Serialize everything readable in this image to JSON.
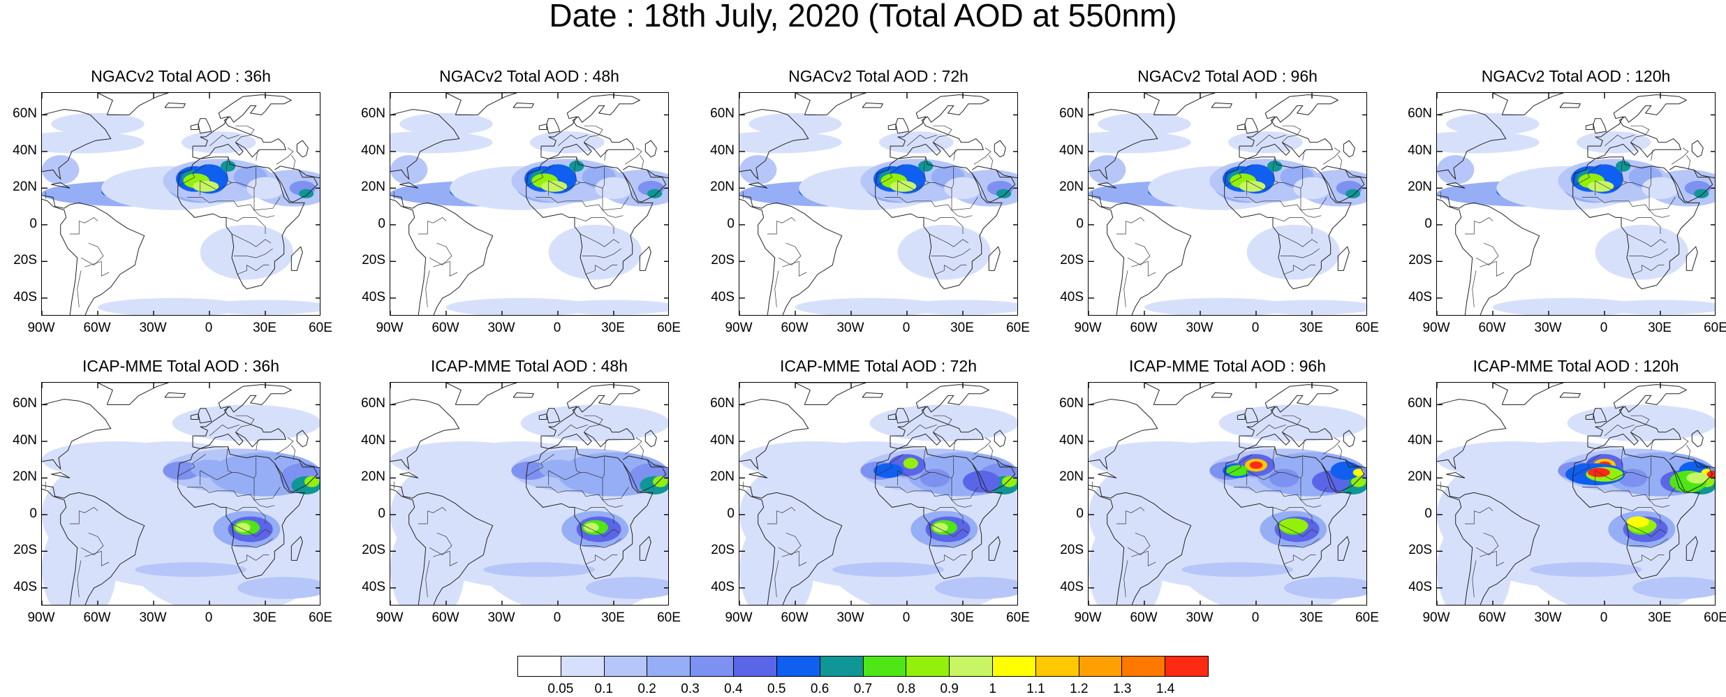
{
  "title": "Date : 18th July, 2020 (Total AOD at 550nm)",
  "rows": [
    {
      "model": "NGACv2",
      "panels": [
        {
          "title": "NGACv2 Total AOD : 36h"
        },
        {
          "title": "NGACv2 Total AOD : 48h"
        },
        {
          "title": "NGACv2 Total AOD : 72h"
        },
        {
          "title": "NGACv2 Total AOD : 96h"
        },
        {
          "title": "NGACv2 Total AOD : 120h"
        }
      ]
    },
    {
      "model": "ICAP-MME",
      "panels": [
        {
          "title": "ICAP-MME Total AOD : 36h"
        },
        {
          "title": "ICAP-MME Total AOD : 48h"
        },
        {
          "title": "ICAP-MME Total AOD : 72h"
        },
        {
          "title": "ICAP-MME Total AOD : 96h"
        },
        {
          "title": "ICAP-MME Total AOD : 120h"
        }
      ]
    }
  ],
  "lat_ticks": [
    "60N",
    "40N",
    "20N",
    "0",
    "20S",
    "40S"
  ],
  "lon_ticks": [
    "90W",
    "60W",
    "30W",
    "0",
    "30E",
    "60E"
  ],
  "lat_range": [
    -50,
    72
  ],
  "lon_range": [
    -90,
    60
  ],
  "colorbar": {
    "colors": [
      "#ffffff",
      "#d7e0fb",
      "#b6c6f8",
      "#95aef5",
      "#7d91f0",
      "#5b65e8",
      "#0f5ff0",
      "#0f9696",
      "#4fe616",
      "#93f00a",
      "#c8f564",
      "#ffff00",
      "#ffc800",
      "#ffa000",
      "#ff7800",
      "#ff2a14"
    ],
    "labels": [
      "0.05",
      "0.1",
      "0.2",
      "0.3",
      "0.4",
      "0.5",
      "0.6",
      "0.7",
      "0.8",
      "0.9",
      "1",
      "1.1",
      "1.2",
      "1.3",
      "1.4"
    ]
  }
}
